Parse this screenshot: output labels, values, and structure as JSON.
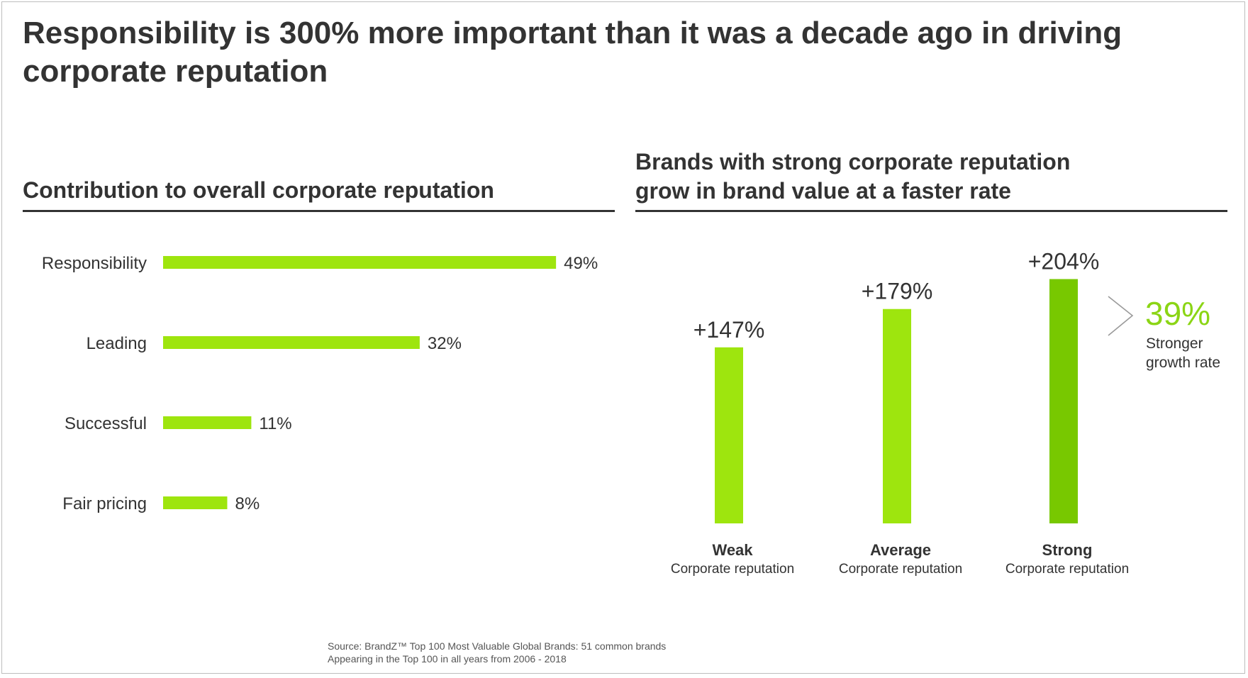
{
  "title": "Responsibility is 300% more important than it was a decade ago in driving corporate reputation",
  "colors": {
    "bar_light": "#9ee50e",
    "bar_strong": "#78c800",
    "accent_text": "#8bd515",
    "text": "#333333"
  },
  "chart_data": [
    {
      "type": "bar",
      "orientation": "horizontal",
      "title": "Contribution to overall corporate reputation",
      "categories": [
        "Responsibility",
        "Leading",
        "Successful",
        "Fair pricing"
      ],
      "values": [
        49,
        32,
        11,
        8
      ],
      "value_labels": [
        "49%",
        "32%",
        "11%",
        "8%"
      ],
      "xlim": [
        0,
        55
      ],
      "grid": false,
      "legend": "none"
    },
    {
      "type": "bar",
      "orientation": "vertical",
      "title": "Brands with strong corporate reputation grow in brand value at a faster rate",
      "categories": [
        "Weak",
        "Average",
        "Strong"
      ],
      "category_sublabel": "Corporate reputation",
      "values": [
        147,
        179,
        204
      ],
      "value_labels": [
        "+147%",
        "+179%",
        "+204%"
      ],
      "ylim": [
        0,
        212
      ],
      "grid": false,
      "legend": "none",
      "annotation": {
        "value": "39%",
        "text_line1": "Stronger",
        "text_line2": "growth rate",
        "icon": "chevron-right-icon"
      }
    }
  ],
  "source": {
    "line1": "Source: BrandZ™ Top 100 Most Valuable Global Brands: 51 common brands",
    "line2": "Appearing in the Top 100 in all years from 2006 - 2018"
  }
}
